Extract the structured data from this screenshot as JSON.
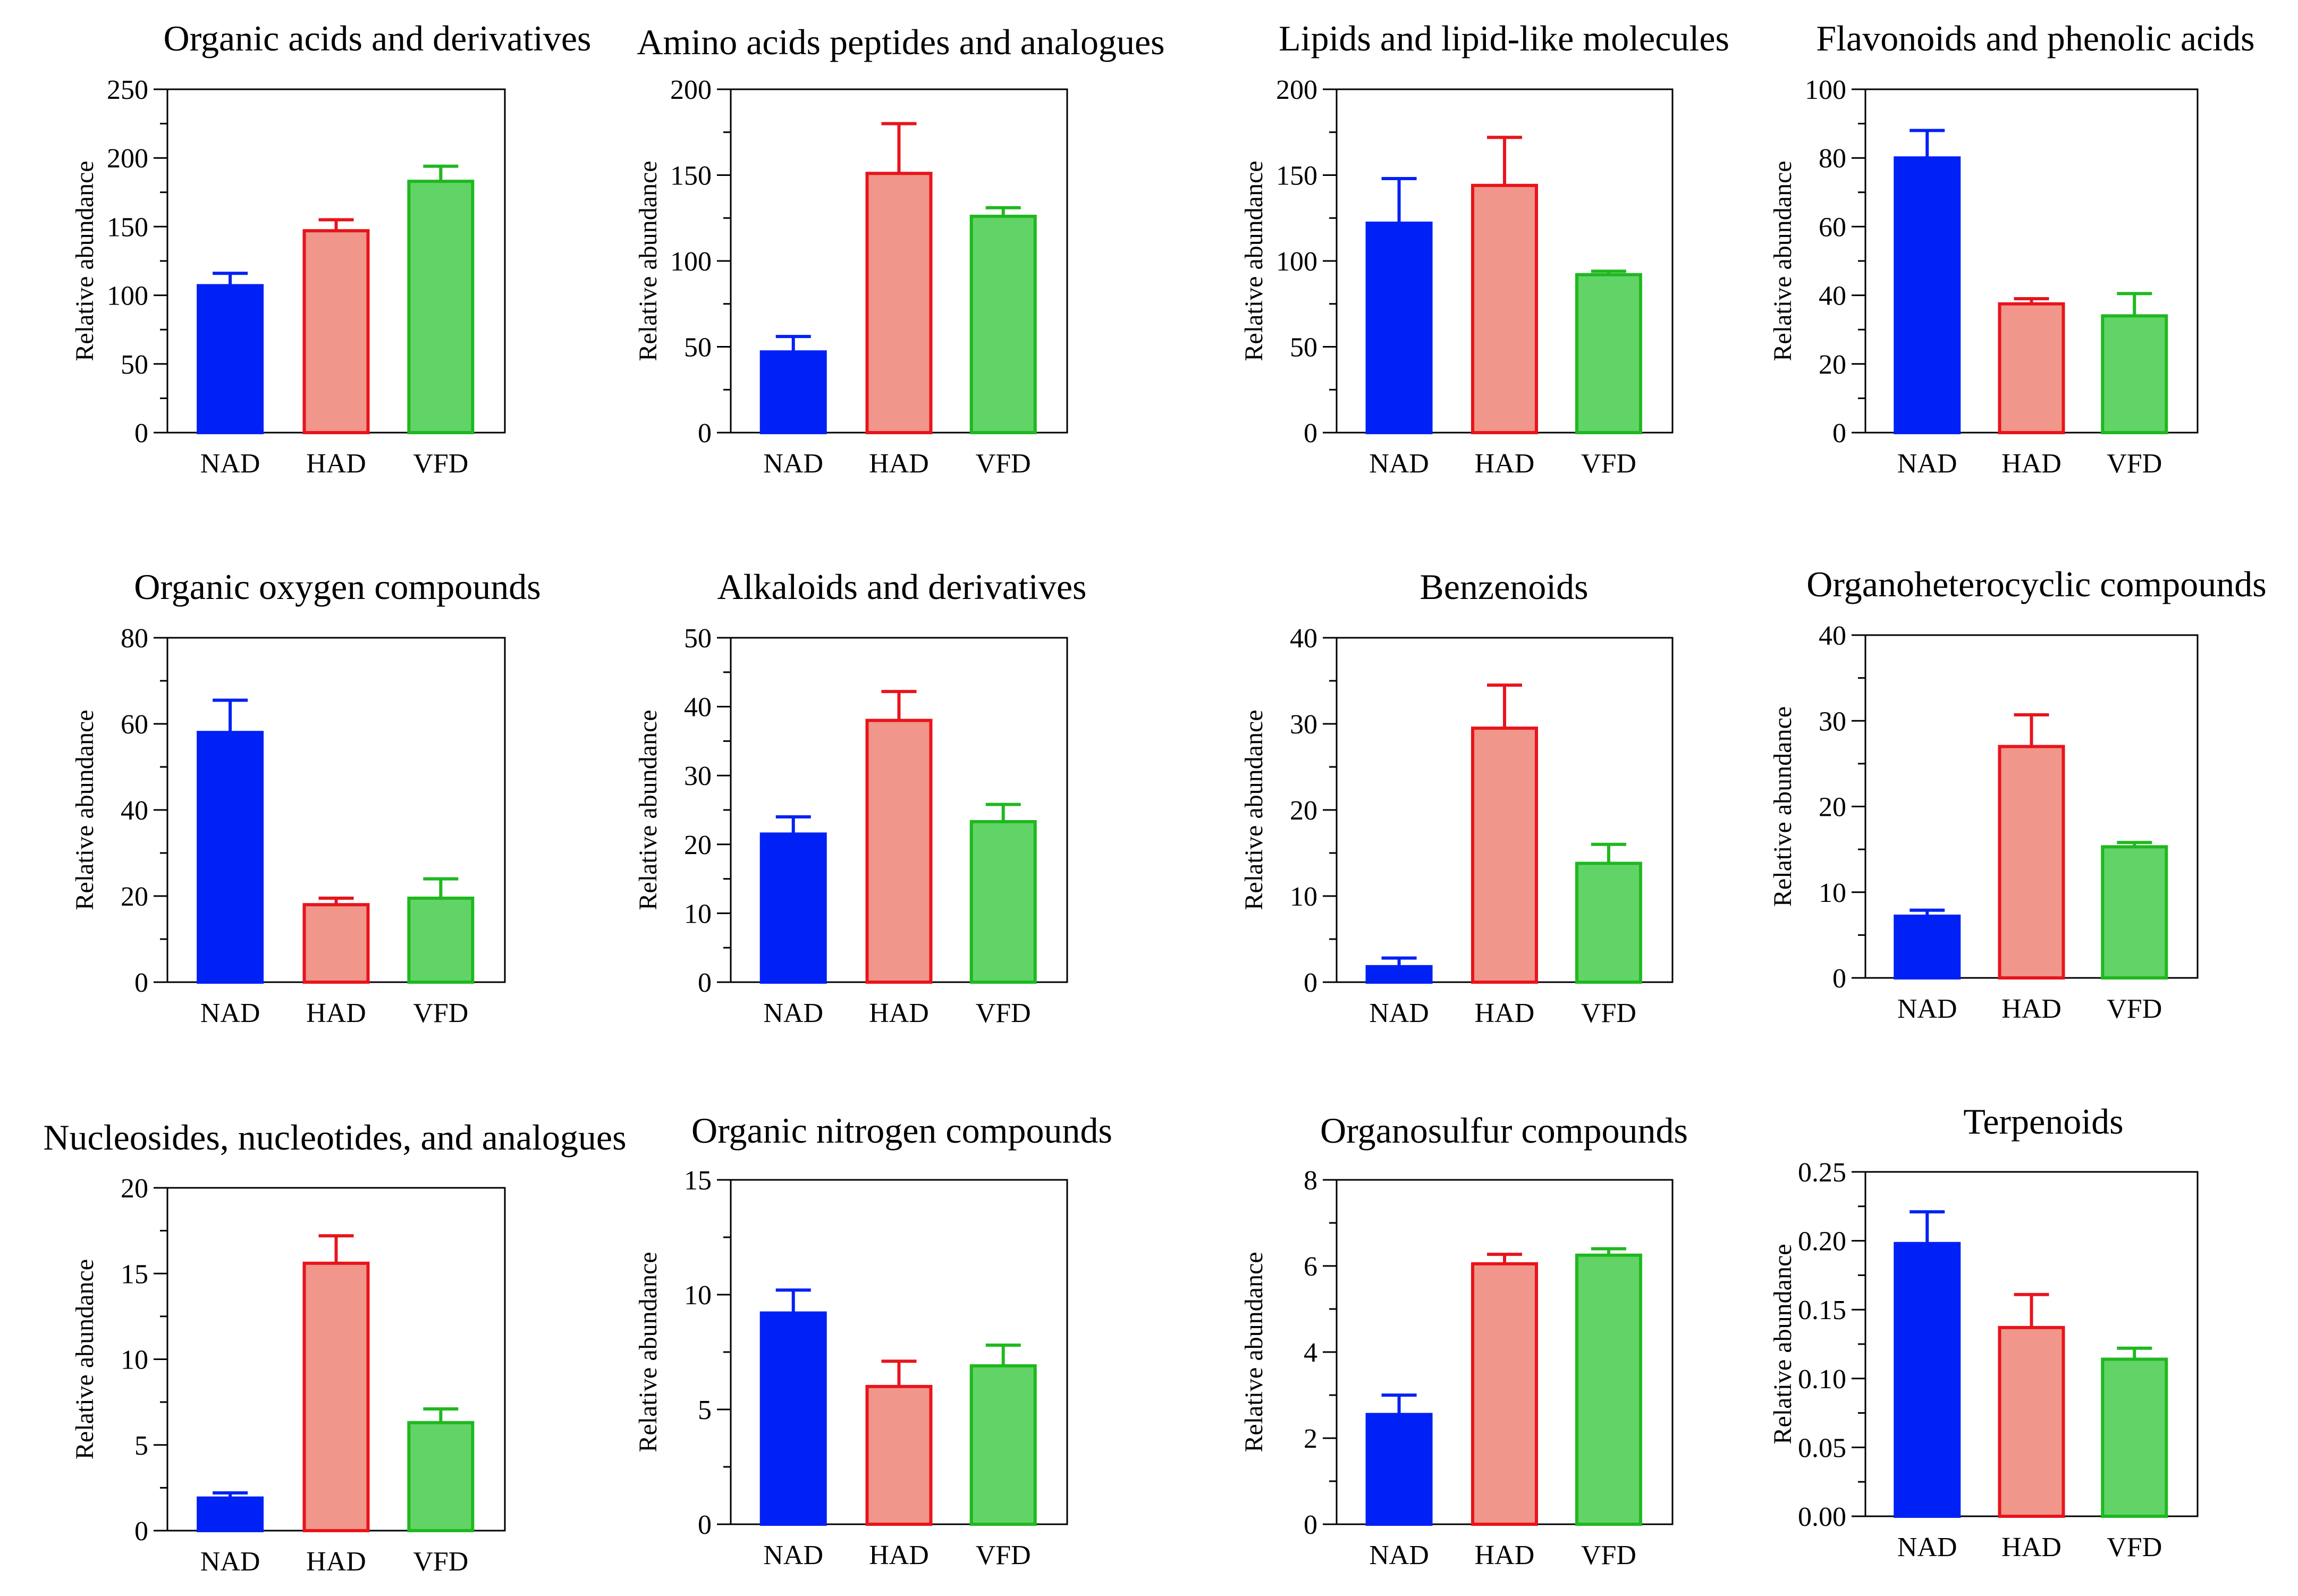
{
  "figure": {
    "ylabel": "Relative abundance",
    "categories": [
      "NAD",
      "HAD",
      "VFD"
    ],
    "colors": {
      "NAD": {
        "fill": "#0021F5",
        "stroke": "#0021F5"
      },
      "HAD": {
        "fill": "#F0968A",
        "stroke": "#E8141C"
      },
      "VFD": {
        "fill": "#62D467",
        "stroke": "#1FB81F"
      }
    }
  },
  "chart_data": [
    {
      "type": "bar",
      "title": "Organic acids and derivatives",
      "ylabel": "Relative abundance",
      "categories": [
        "NAD",
        "HAD",
        "VFD"
      ],
      "values": [
        107,
        147,
        183
      ],
      "errors": [
        9,
        8,
        11
      ],
      "ylim": [
        0,
        250
      ],
      "yticks": [
        0,
        50,
        100,
        150,
        200,
        250
      ],
      "ytick_labels": [
        "0",
        "50",
        "100",
        "150",
        "200",
        "250"
      ]
    },
    {
      "type": "bar",
      "title": "Amino acids peptides and analogues",
      "ylabel": "Relative abundance",
      "categories": [
        "NAD",
        "HAD",
        "VFD"
      ],
      "values": [
        47,
        151,
        126
      ],
      "errors": [
        9,
        29,
        5
      ],
      "ylim": [
        0,
        200
      ],
      "yticks": [
        0,
        50,
        100,
        150,
        200
      ],
      "ytick_labels": [
        "0",
        "50",
        "100",
        "150",
        "200"
      ]
    },
    {
      "type": "bar",
      "title": "Lipids and lipid-like molecules",
      "ylabel": "Relative abundance",
      "categories": [
        "NAD",
        "HAD",
        "VFD"
      ],
      "values": [
        122,
        144,
        92
      ],
      "errors": [
        26,
        28,
        2
      ],
      "ylim": [
        0,
        200
      ],
      "yticks": [
        0,
        50,
        100,
        150,
        200
      ],
      "ytick_labels": [
        "0",
        "50",
        "100",
        "150",
        "200"
      ]
    },
    {
      "type": "bar",
      "title": "Flavonoids and phenolic acids",
      "ylabel": "Relative abundance",
      "categories": [
        "NAD",
        "HAD",
        "VFD"
      ],
      "values": [
        80,
        37.5,
        34
      ],
      "errors": [
        8,
        1.5,
        6.5
      ],
      "ylim": [
        0,
        100
      ],
      "yticks": [
        0,
        20,
        40,
        60,
        80,
        100
      ],
      "ytick_labels": [
        "0",
        "20",
        "40",
        "60",
        "80",
        "100"
      ]
    },
    {
      "type": "bar",
      "title": "Organic oxygen compounds",
      "ylabel": "Relative abundance",
      "categories": [
        "NAD",
        "HAD",
        "VFD"
      ],
      "values": [
        58,
        18,
        19.5
      ],
      "errors": [
        7.5,
        1.5,
        4.5
      ],
      "ylim": [
        0,
        80
      ],
      "yticks": [
        0,
        20,
        40,
        60,
        80
      ],
      "ytick_labels": [
        "0",
        "20",
        "40",
        "60",
        "80"
      ]
    },
    {
      "type": "bar",
      "title": "Alkaloids and derivatives",
      "ylabel": "Relative abundance",
      "categories": [
        "NAD",
        "HAD",
        "VFD"
      ],
      "values": [
        21.5,
        38,
        23.3
      ],
      "errors": [
        2.5,
        4.2,
        2.5
      ],
      "ylim": [
        0,
        50
      ],
      "yticks": [
        0,
        10,
        20,
        30,
        40,
        50
      ],
      "ytick_labels": [
        "0",
        "10",
        "20",
        "30",
        "40",
        "50"
      ]
    },
    {
      "type": "bar",
      "title": "Benzenoids",
      "ylabel": "Relative abundance",
      "categories": [
        "NAD",
        "HAD",
        "VFD"
      ],
      "values": [
        1.8,
        29.5,
        13.8
      ],
      "errors": [
        1,
        5,
        2.2
      ],
      "ylim": [
        0,
        40
      ],
      "yticks": [
        0,
        10,
        20,
        30,
        40
      ],
      "ytick_labels": [
        "0",
        "10",
        "20",
        "30",
        "40"
      ]
    },
    {
      "type": "bar",
      "title": "Organoheterocyclic compounds",
      "ylabel": "Relative abundance",
      "categories": [
        "NAD",
        "HAD",
        "VFD"
      ],
      "values": [
        7.2,
        27,
        15.3
      ],
      "errors": [
        0.7,
        3.7,
        0.5
      ],
      "ylim": [
        0,
        40
      ],
      "yticks": [
        0,
        10,
        20,
        30,
        40
      ],
      "ytick_labels": [
        "0",
        "10",
        "20",
        "30",
        "40"
      ]
    },
    {
      "type": "bar",
      "title": "Nucleosides, nucleotides, and analogues",
      "ylabel": "Relative abundance",
      "categories": [
        "NAD",
        "HAD",
        "VFD"
      ],
      "values": [
        1.9,
        15.6,
        6.3
      ],
      "errors": [
        0.3,
        1.6,
        0.8
      ],
      "ylim": [
        0,
        20
      ],
      "yticks": [
        0,
        5,
        10,
        15,
        20
      ],
      "ytick_labels": [
        "0",
        "5",
        "10",
        "15",
        "20"
      ]
    },
    {
      "type": "bar",
      "title": "Organic nitrogen compounds",
      "ylabel": "Relative abundance",
      "categories": [
        "NAD",
        "HAD",
        "VFD"
      ],
      "values": [
        9.2,
        6,
        6.9
      ],
      "errors": [
        1,
        1.1,
        0.9
      ],
      "ylim": [
        0,
        15
      ],
      "yticks": [
        0,
        5,
        10,
        15
      ],
      "ytick_labels": [
        "0",
        "5",
        "10",
        "15"
      ]
    },
    {
      "type": "bar",
      "title": "Organosulfur compounds",
      "ylabel": "Relative abundance",
      "categories": [
        "NAD",
        "HAD",
        "VFD"
      ],
      "values": [
        2.55,
        6.05,
        6.25
      ],
      "errors": [
        0.45,
        0.22,
        0.15
      ],
      "ylim": [
        0,
        8
      ],
      "yticks": [
        0,
        2,
        4,
        6,
        8
      ],
      "ytick_labels": [
        "0",
        "2",
        "4",
        "6",
        "8"
      ]
    },
    {
      "type": "bar",
      "title": "Terpenoids",
      "ylabel": "Relative abundance",
      "categories": [
        "NAD",
        "HAD",
        "VFD"
      ],
      "values": [
        0.198,
        0.137,
        0.114
      ],
      "errors": [
        0.023,
        0.024,
        0.008
      ],
      "ylim": [
        0,
        0.25
      ],
      "yticks": [
        0,
        0.05,
        0.1,
        0.15,
        0.2,
        0.25
      ],
      "ytick_labels": [
        "0.00",
        "0.05",
        "0.10",
        "0.15",
        "0.20",
        "0.25"
      ]
    }
  ]
}
